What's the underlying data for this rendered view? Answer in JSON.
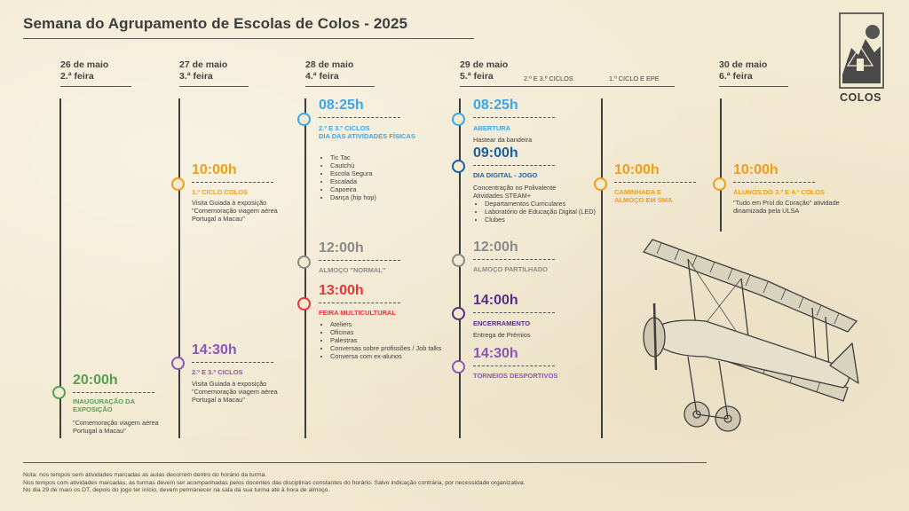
{
  "title": "Semana do Agrupamento de Escolas de Colos - 2025",
  "logo": {
    "text": "COLOS"
  },
  "colors": {
    "orange": "#f29d1a",
    "green": "#56a04e",
    "purple": "#8a56b8",
    "blue": "#3aa7e6",
    "dark_blue": "#1a5fa6",
    "grey": "#8a8a8a",
    "red": "#e6363a",
    "dark_purple": "#5b2c86"
  },
  "days": [
    {
      "date": "26 de maio",
      "weekday": "2.ª feira"
    },
    {
      "date": "27 de maio",
      "weekday": "3.ª feira"
    },
    {
      "date": "28 de maio",
      "weekday": "4.ª feira"
    },
    {
      "date": "29 de maio",
      "weekday": "5.ª feira",
      "sub_left": "2.º E 3.º CICLOS",
      "sub_right": "1.º CICLO E EPE"
    },
    {
      "date": "30 de maio",
      "weekday": "6.ª feira"
    }
  ],
  "events": {
    "d1_2000": {
      "time": "20:00h",
      "label": "INAUGURAÇÃO DA EXPOSIÇÃO",
      "desc": "\"Comemoração viagem aérea Portugal a Macau\""
    },
    "d2_1000": {
      "time": "10:00h",
      "label": "1.º CICLO COLOS",
      "desc": "Visita Guiada à exposição \"Comemoração viagem aérea Portugal a Macau\""
    },
    "d2_1430": {
      "time": "14:30h",
      "label": "2.º E 3.º CICLOS",
      "desc": "Visita Guiada à exposição \"Comemoração viagem aérea Portugal a Macau\""
    },
    "d3_0825": {
      "time": "08:25h",
      "label1": "2.º E 3.º CICLOS",
      "label2": "DIA DAS ATIVIDADES FÍSICAS",
      "items": [
        "Tic Tac",
        "Cautchú",
        "Escola Segura",
        "Escalada",
        "Capoeira",
        "Dança (hip hop)"
      ]
    },
    "d3_1200": {
      "time": "12:00h",
      "label": "ALMOÇO \"NORMAL\""
    },
    "d3_1300": {
      "time": "13:00h",
      "label": "FEIRA MULTICULTURAL",
      "items": [
        "Ateliers",
        "Oficinas",
        "Palestras",
        "Conversas sobre profissões / Job talks",
        "Conversa com ex-alunos"
      ]
    },
    "d4_0825": {
      "time": "08:25h",
      "label": "ABERTURA",
      "desc": "Hastear da bandeira"
    },
    "d4_0900": {
      "time": "09:00h",
      "label": "DIA DIGITAL - JOGO",
      "desc": "Concentração no Polivalente Atividades STEAM+",
      "items": [
        "Departamentos Curriculares",
        "Laboratório de Educação Digital (LED)",
        "Clubes"
      ]
    },
    "d4_1200": {
      "time": "12:00h",
      "label": "ALMOÇO PARTILHADO"
    },
    "d4_1400": {
      "time": "14:00h",
      "label": "ENCERRAMENTO",
      "desc": "Entrega de Prémios"
    },
    "d4_1430": {
      "time": "14:30h",
      "label": "TORNEIOS DESPORTIVOS"
    },
    "d4b_1000": {
      "time": "10:00h",
      "label": "CAMINHADA E ALMOÇO EM SMA"
    },
    "d5_1000": {
      "time": "10:00h",
      "label": "ALUNOS DO 3.º E 4.º COLOS",
      "desc": "\"Tudo em Prol do Coração\" atividade dinamizada pela ULSA"
    }
  },
  "notes": [
    "Nota: nos tempos sem atividades marcadas as aulas decorrem dentro do horário da turma.",
    "Nos tempos com atividades marcadas, as turmas devem ser acompanhadas pelos docentes das disciplinas constantes do horário. Salvo indicação contrária, por necessidade organizativa.",
    "No dia 29 de maio os DT, depois do jogo ter início, devem permanecer na sala da sua turma até à hora de almoço."
  ]
}
